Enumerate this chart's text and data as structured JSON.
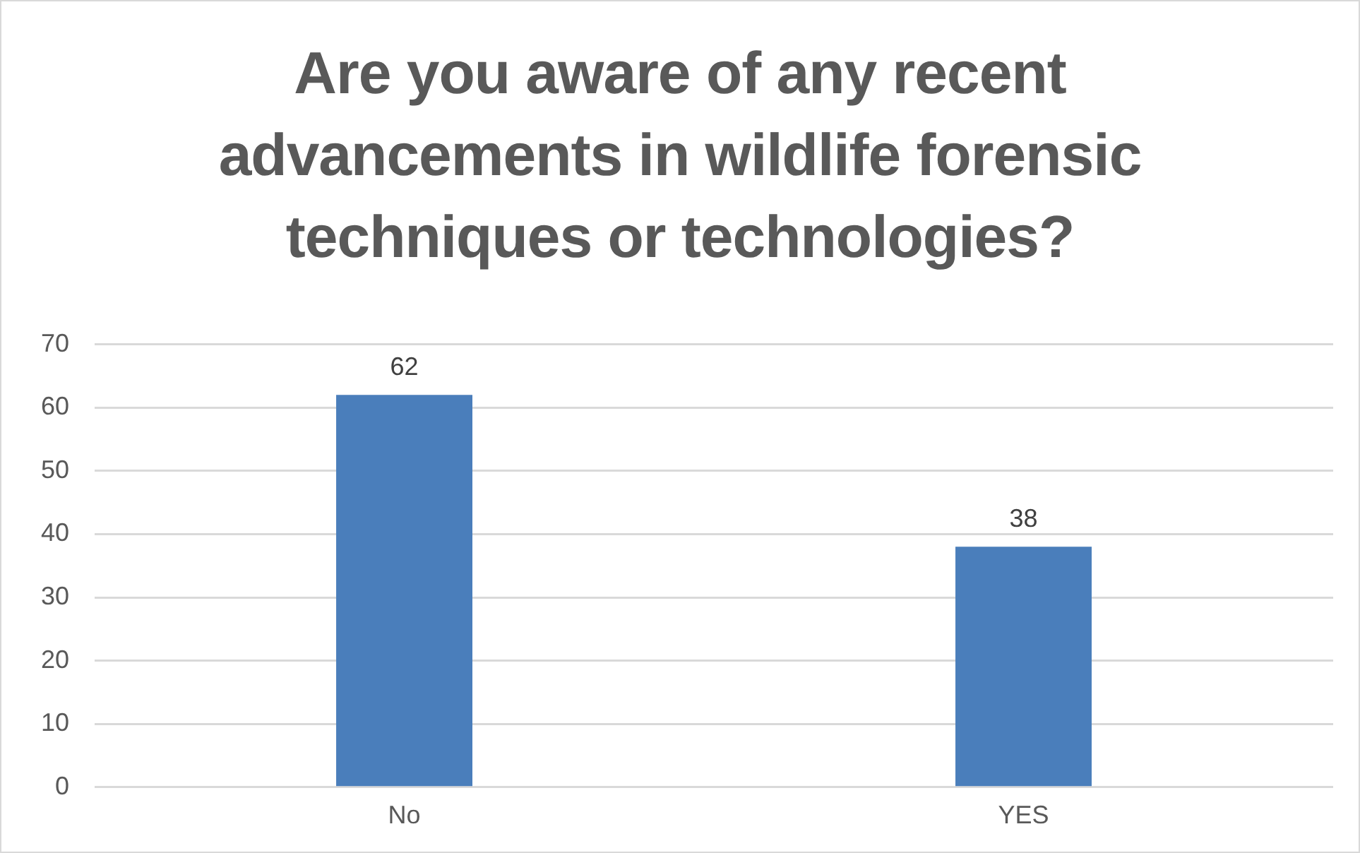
{
  "chart_data": {
    "type": "bar",
    "title": "Are you aware of any recent advancements in wildlife forensic techniques or technologies?",
    "categories": [
      "No",
      "YES"
    ],
    "values": [
      62,
      38
    ],
    "color": "#4a7ebb",
    "ylim": [
      0,
      70
    ],
    "yticks": [
      0,
      10,
      20,
      30,
      40,
      50,
      60,
      70
    ],
    "grid": "y",
    "data_labels": true,
    "legend": false
  }
}
